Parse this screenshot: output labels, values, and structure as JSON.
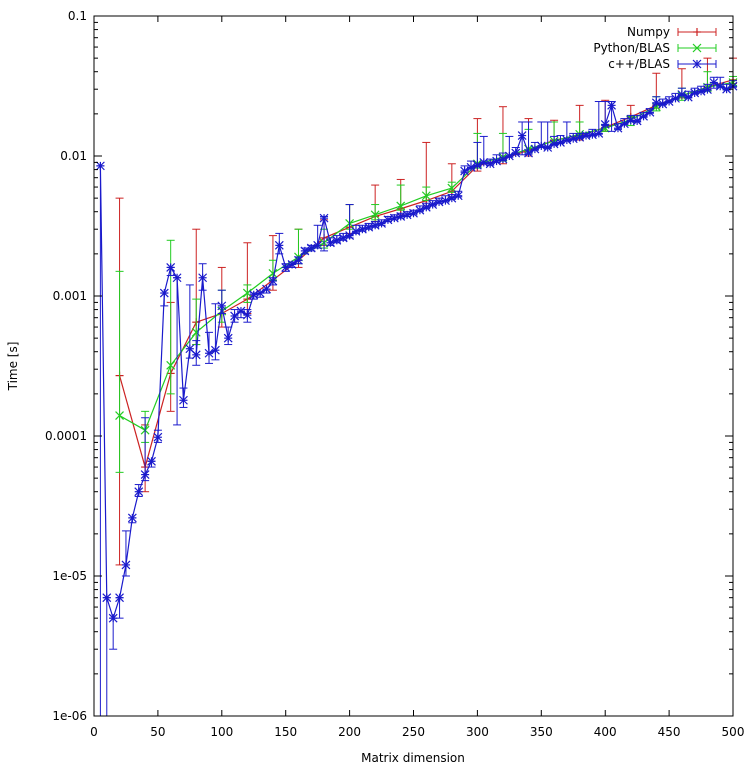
{
  "chart_data": {
    "type": "line",
    "title": "",
    "xlabel": "Matrix dimension",
    "ylabel": "Time [s]",
    "xlim": [
      0,
      500
    ],
    "ylim": [
      1e-06,
      0.1
    ],
    "yscale": "log",
    "grid": false,
    "legend_position": "top-right",
    "xticks": [
      0,
      50,
      100,
      150,
      200,
      250,
      300,
      350,
      400,
      450,
      500
    ],
    "xtick_labels": [
      "0",
      "50",
      "100",
      "150",
      "200",
      "250",
      "300",
      "350",
      "400",
      "450",
      "500"
    ],
    "yticks": [
      1e-06,
      1e-05,
      0.0001,
      0.001,
      0.01,
      0.1
    ],
    "ytick_labels": [
      "1e-06",
      "1e-05",
      "0.0001",
      "0.001",
      "0.01",
      "0.1"
    ],
    "series": [
      {
        "name": "Numpy",
        "color": "#cc2222",
        "marker": "plus",
        "x": [
          20,
          40,
          60,
          80,
          100,
          120,
          140,
          160,
          180,
          200,
          220,
          240,
          260,
          280,
          300,
          320,
          340,
          360,
          380,
          400,
          420,
          440,
          460,
          480,
          500
        ],
        "y": [
          0.00027,
          6e-05,
          0.00028,
          0.00065,
          0.00075,
          0.00095,
          0.0013,
          0.0018,
          0.0026,
          0.0031,
          0.0037,
          0.0042,
          0.0048,
          0.0056,
          0.0085,
          0.0095,
          0.011,
          0.013,
          0.014,
          0.016,
          0.019,
          0.023,
          0.027,
          0.031,
          0.035
        ],
        "err_low": [
          1.2e-05,
          4e-05,
          0.00015,
          0.00045,
          0.0006,
          0.00075,
          0.0011,
          0.0016,
          0.0023,
          0.0028,
          0.0034,
          0.0038,
          0.0044,
          0.0051,
          0.0078,
          0.0088,
          0.01,
          0.012,
          0.013,
          0.015,
          0.018,
          0.022,
          0.026,
          0.03,
          0.033
        ],
        "err_high": [
          0.005,
          0.00012,
          0.0009,
          0.003,
          0.0016,
          0.0024,
          0.0027,
          0.003,
          0.0035,
          0.0045,
          0.0062,
          0.0068,
          0.0125,
          0.0088,
          0.0185,
          0.0225,
          0.0185,
          0.018,
          0.023,
          0.025,
          0.023,
          0.039,
          0.042,
          0.05,
          0.05
        ]
      },
      {
        "name": "Python/BLAS",
        "color": "#22cc22",
        "marker": "cross",
        "x": [
          20,
          40,
          60,
          80,
          100,
          120,
          140,
          160,
          180,
          200,
          220,
          240,
          260,
          280,
          300,
          320,
          340,
          360,
          380,
          400,
          420,
          440,
          460,
          480,
          500
        ],
        "y": [
          0.00014,
          0.00011,
          0.00032,
          0.00055,
          0.00078,
          0.00105,
          0.00145,
          0.0019,
          0.0024,
          0.0033,
          0.0038,
          0.0044,
          0.0052,
          0.0059,
          0.0088,
          0.0098,
          0.0112,
          0.0128,
          0.0143,
          0.0158,
          0.0182,
          0.0225,
          0.027,
          0.031,
          0.0335
        ],
        "err_low": [
          5.5e-05,
          9e-05,
          0.0002,
          0.00045,
          0.00065,
          0.0009,
          0.0013,
          0.0017,
          0.0022,
          0.003,
          0.0035,
          0.0041,
          0.0048,
          0.0055,
          0.0082,
          0.0092,
          0.0105,
          0.012,
          0.0135,
          0.015,
          0.0165,
          0.021,
          0.025,
          0.029,
          0.032
        ],
        "err_high": [
          0.0015,
          0.00015,
          0.0025,
          0.00095,
          0.0011,
          0.0012,
          0.0018,
          0.003,
          0.003,
          0.0045,
          0.0045,
          0.0062,
          0.006,
          0.0065,
          0.0145,
          0.0145,
          0.0155,
          0.0175,
          0.0175,
          0.0168,
          0.0192,
          0.0265,
          0.0305,
          0.04,
          0.037
        ]
      },
      {
        "name": "c++/BLAS",
        "color": "#1a1acc",
        "marker": "star",
        "x": [
          5,
          10,
          15,
          20,
          25,
          30,
          35,
          40,
          45,
          50,
          55,
          60,
          65,
          70,
          75,
          80,
          85,
          90,
          95,
          100,
          105,
          110,
          115,
          120,
          125,
          130,
          135,
          140,
          145,
          150,
          155,
          160,
          165,
          170,
          175,
          180,
          185,
          190,
          195,
          200,
          205,
          210,
          215,
          220,
          225,
          230,
          235,
          240,
          245,
          250,
          255,
          260,
          265,
          270,
          275,
          280,
          285,
          290,
          295,
          300,
          305,
          310,
          315,
          320,
          325,
          330,
          335,
          340,
          345,
          350,
          355,
          360,
          365,
          370,
          375,
          380,
          385,
          390,
          395,
          400,
          405,
          410,
          415,
          420,
          425,
          430,
          435,
          440,
          445,
          450,
          455,
          460,
          465,
          470,
          475,
          480,
          485,
          490,
          495,
          500
        ],
        "y": [
          0.0085,
          7e-06,
          5e-06,
          7e-06,
          1.2e-05,
          2.6e-05,
          4e-05,
          5.3e-05,
          6.6e-05,
          9.8e-05,
          0.00105,
          0.0016,
          0.00135,
          0.00018,
          0.00042,
          0.00038,
          0.00135,
          0.00039,
          0.00041,
          0.00085,
          0.0005,
          0.00072,
          0.00078,
          0.00073,
          0.00102,
          0.00105,
          0.00112,
          0.00128,
          0.0023,
          0.0016,
          0.00168,
          0.0018,
          0.0021,
          0.0022,
          0.0023,
          0.0036,
          0.0024,
          0.0025,
          0.0026,
          0.0027,
          0.0029,
          0.003,
          0.0031,
          0.0032,
          0.0033,
          0.0035,
          0.0036,
          0.0037,
          0.0038,
          0.0039,
          0.0041,
          0.0043,
          0.0045,
          0.0047,
          0.0048,
          0.005,
          0.0052,
          0.0078,
          0.0083,
          0.0086,
          0.009,
          0.0088,
          0.0092,
          0.0095,
          0.01,
          0.0105,
          0.014,
          0.0105,
          0.0112,
          0.0118,
          0.0115,
          0.0122,
          0.0125,
          0.013,
          0.0133,
          0.0136,
          0.014,
          0.0142,
          0.0145,
          0.0168,
          0.023,
          0.0158,
          0.017,
          0.018,
          0.0178,
          0.0192,
          0.0205,
          0.024,
          0.0235,
          0.0245,
          0.0258,
          0.0275,
          0.0263,
          0.0282,
          0.029,
          0.0298,
          0.0335,
          0.0315,
          0.03,
          0.0315
        ],
        "err_low": [
          1e-06,
          1e-06,
          3e-06,
          5e-06,
          1e-05,
          2.4e-05,
          3.7e-05,
          4.8e-05,
          6e-05,
          9e-05,
          0.00085,
          0.0014,
          0.00012,
          0.00016,
          0.00036,
          0.00032,
          0.0011,
          0.00033,
          0.00035,
          0.00075,
          0.00045,
          0.00065,
          0.0007,
          0.00065,
          0.00095,
          0.00098,
          0.00105,
          0.0012,
          0.002,
          0.0015,
          0.0016,
          0.0017,
          0.002,
          0.0021,
          0.0022,
          0.0021,
          0.0023,
          0.0024,
          0.0025,
          0.0026,
          0.0028,
          0.0029,
          0.003,
          0.0031,
          0.0032,
          0.0034,
          0.0035,
          0.0036,
          0.0037,
          0.0038,
          0.004,
          0.0042,
          0.0044,
          0.0046,
          0.0047,
          0.0049,
          0.0051,
          0.0076,
          0.0081,
          0.0084,
          0.0088,
          0.0086,
          0.009,
          0.0093,
          0.0098,
          0.0103,
          0.0102,
          0.0103,
          0.011,
          0.0115,
          0.0113,
          0.012,
          0.0123,
          0.0128,
          0.0131,
          0.0134,
          0.0138,
          0.014,
          0.0143,
          0.0165,
          0.015,
          0.0155,
          0.0168,
          0.0176,
          0.0175,
          0.0189,
          0.0202,
          0.0235,
          0.0232,
          0.0242,
          0.0254,
          0.027,
          0.026,
          0.0278,
          0.0287,
          0.0295,
          0.0305,
          0.031,
          0.0296,
          0.031
        ],
        "err_high": [
          0.0085,
          7e-06,
          5e-06,
          7e-06,
          2.1e-05,
          2.6e-05,
          4.5e-05,
          0.000135,
          6.6e-05,
          0.00011,
          0.00105,
          0.0016,
          0.00135,
          0.00022,
          0.0012,
          0.00048,
          0.0017,
          0.00055,
          0.00088,
          0.0011,
          0.0006,
          0.0008,
          0.00078,
          0.0008,
          0.00105,
          0.00105,
          0.00112,
          0.00135,
          0.0028,
          0.0017,
          0.00175,
          0.0019,
          0.0022,
          0.0023,
          0.0032,
          0.0037,
          0.0026,
          0.0027,
          0.0028,
          0.0045,
          0.0032,
          0.0032,
          0.0033,
          0.0034,
          0.0035,
          0.0037,
          0.0038,
          0.0039,
          0.004,
          0.0041,
          0.0044,
          0.0046,
          0.0048,
          0.005,
          0.0052,
          0.0053,
          0.0056,
          0.0085,
          0.0092,
          0.0125,
          0.0138,
          0.0095,
          0.0102,
          0.0105,
          0.0138,
          0.0115,
          0.0175,
          0.0175,
          0.0125,
          0.0175,
          0.0175,
          0.0138,
          0.014,
          0.0175,
          0.0145,
          0.0145,
          0.0145,
          0.0155,
          0.0245,
          0.0245,
          0.0245,
          0.017,
          0.0185,
          0.0195,
          0.0195,
          0.0205,
          0.0218,
          0.0265,
          0.0255,
          0.0265,
          0.028,
          0.0305,
          0.029,
          0.0305,
          0.0315,
          0.0325,
          0.0365,
          0.0365,
          0.0325,
          0.0345
        ]
      }
    ]
  }
}
